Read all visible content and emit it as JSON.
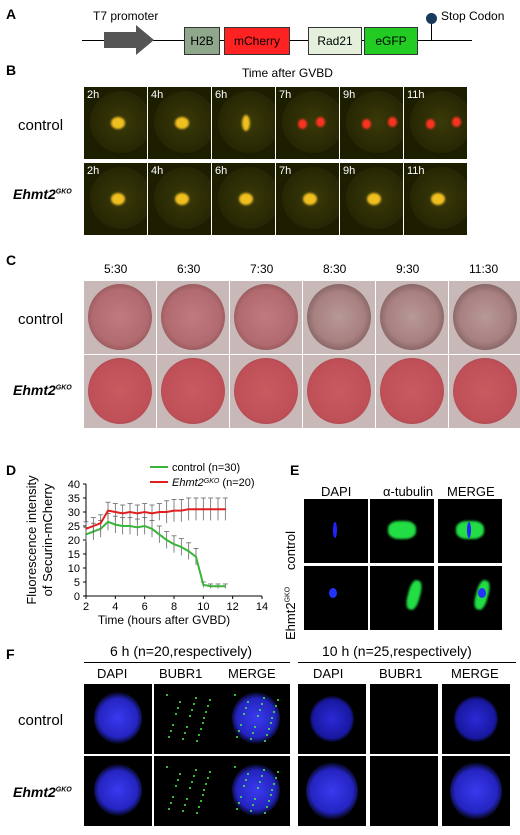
{
  "panels": {
    "a": "A",
    "b": "B",
    "c": "C",
    "d": "D",
    "e": "E",
    "f": "F"
  },
  "a": {
    "promoter": "T7 promoter",
    "stop": "Stop Codon",
    "genes": [
      "H2B",
      "mCherry",
      "Rad21",
      "eGFP"
    ],
    "gene_colors": [
      "#8fa88c",
      "#ff2222",
      "#e4f0dc",
      "#22cc22"
    ]
  },
  "b": {
    "title": "Time after GVBD",
    "rows": [
      "control",
      "Ehmt2"
    ],
    "row_sup": "GKO",
    "times": [
      "2h",
      "4h",
      "6h",
      "7h",
      "9h",
      "11h"
    ]
  },
  "c": {
    "times": [
      "5:30",
      "6:30",
      "7:30",
      "8:30",
      "9:30",
      "11:30"
    ],
    "rows": [
      "control",
      "Ehmt2"
    ],
    "row_sup": "GKO"
  },
  "d": {
    "ylabel1": "Fluorescence intensity",
    "ylabel2": "of Securin-mCherry",
    "xlabel": "Time (hours after GVBD)"
  },
  "e": {
    "cols": [
      "DAPI",
      "α-tubulin",
      "MERGE"
    ],
    "row1": "control",
    "row2": "Ehmt2",
    "row2_sup": "GKO"
  },
  "f": {
    "group1": "6 h (n=20,respectively)",
    "group2": "10 h (n=25,respectively)",
    "cols": [
      "DAPI",
      "BUBR1",
      "MERGE"
    ],
    "rows": [
      "control",
      "Ehmt2"
    ],
    "row_sup": "GKO"
  },
  "chart_data": {
    "type": "line",
    "xlabel": "Time (hours after GVBD)",
    "ylabel": "Fluorescence intensity of Securin-mCherry",
    "xlim": [
      2,
      14
    ],
    "ylim": [
      0,
      40
    ],
    "xticks": [
      "2",
      "4",
      "6",
      "8",
      "10",
      "12",
      "14"
    ],
    "yticks": [
      "0",
      "5",
      "10",
      "15",
      "20",
      "25",
      "30",
      "35",
      "40"
    ],
    "legend_position": "top",
    "series": [
      {
        "name": "control (n=30)",
        "legend_main": "control",
        "legend_n": "(n=30)",
        "color": "#3ab53a",
        "x": [
          2,
          2.5,
          3,
          3.5,
          4,
          4.5,
          5,
          5.5,
          6,
          6.5,
          7,
          7.5,
          8,
          8.5,
          9,
          9.5,
          10,
          10.5,
          11,
          11.5
        ],
        "y": [
          22,
          23,
          24,
          26.5,
          25.5,
          25,
          25,
          24.5,
          25,
          24,
          22,
          20,
          18.5,
          17.5,
          16,
          14,
          4,
          3.5,
          3.5,
          3.5
        ],
        "err": [
          2.5,
          3,
          3,
          3,
          3,
          3,
          3,
          3,
          3,
          3,
          3,
          3,
          3,
          3,
          3,
          3,
          1,
          0.8,
          0.8,
          0.8
        ]
      },
      {
        "name": "Ehmt2GKO (n=20)",
        "legend_main": "Ehmt2",
        "legend_sup": "GKO",
        "legend_n": "(n=20)",
        "color": "#e02020",
        "x": [
          2,
          2.5,
          3,
          3.5,
          4,
          4.5,
          5,
          5.5,
          6,
          6.5,
          7,
          7.5,
          8,
          8.5,
          9,
          9.5,
          10,
          10.5,
          11,
          11.5
        ],
        "y": [
          24,
          25,
          26,
          30.5,
          30,
          29.5,
          30,
          29.5,
          30,
          29.5,
          30,
          30,
          30.5,
          30.5,
          31,
          31,
          31,
          31,
          31,
          31
        ],
        "err": [
          2.5,
          3,
          3,
          3,
          3,
          3,
          3,
          3,
          3,
          3,
          3,
          4,
          4,
          4,
          4,
          4,
          4,
          4,
          4,
          4
        ]
      }
    ]
  }
}
